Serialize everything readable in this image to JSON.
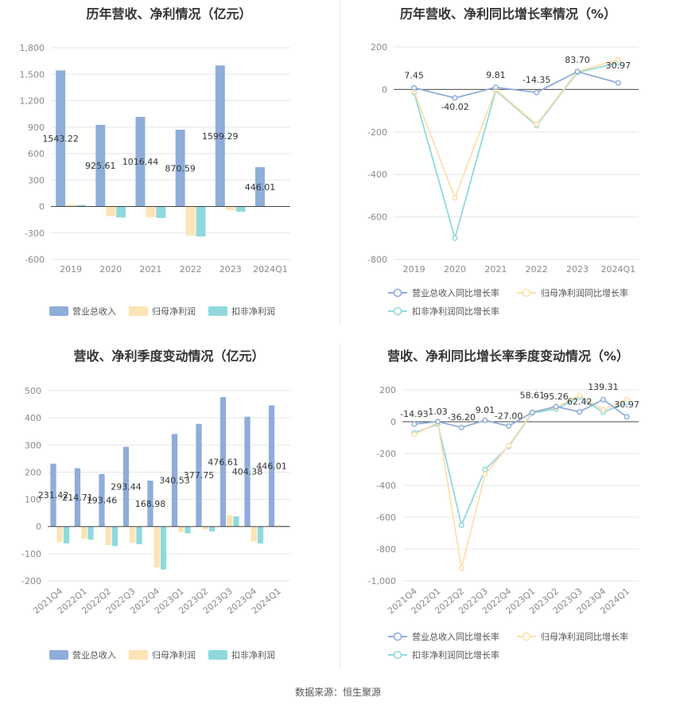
{
  "source": "数据来源：恒生聚源",
  "colors": {
    "revenue": "#8eadd9",
    "parent_profit": "#fde3b5",
    "deducted_profit": "#8fd9dc",
    "revenue_line": "#8eadd9",
    "parent_line": "#fddfab",
    "deducted_line": "#8fd9dc",
    "grid": "#e6e6e6",
    "axis": "#444444"
  },
  "legend_bar": [
    "营业总收入",
    "归母净利润",
    "扣非净利润"
  ],
  "legend_line": [
    "营业总收入同比增长率",
    "归母净利润同比增长率",
    "扣非净利润同比增长率"
  ],
  "chart_data": [
    {
      "id": "annual_revenue_profit",
      "type": "bar",
      "title": "历年营收、净利情况（亿元）",
      "categories": [
        "2019",
        "2020",
        "2021",
        "2022",
        "2023",
        "2024Q1"
      ],
      "ylim": [
        -600,
        1800
      ],
      "yticks": [
        -600,
        -300,
        0,
        300,
        600,
        900,
        1200,
        1500,
        1800
      ],
      "ytick_labels": [
        "-600",
        "-300",
        "0",
        "300",
        "600",
        "900",
        "1,200",
        "1,500",
        "1,800"
      ],
      "grid": true,
      "legend_position": "bottom",
      "series": [
        {
          "name": "营业总收入",
          "values": [
            1543.22,
            925.61,
            1016.44,
            870.59,
            1599.29,
            446.01
          ],
          "labels": [
            "1543.22",
            "925.61",
            "1016.44",
            "870.59",
            "1599.29",
            "446.01"
          ]
        },
        {
          "name": "归母净利润",
          "values": [
            22,
            -110,
            -120,
            -330,
            -40,
            5
          ]
        },
        {
          "name": "扣非净利润",
          "values": [
            18,
            -125,
            -130,
            -340,
            -60,
            3
          ]
        }
      ]
    },
    {
      "id": "annual_growth",
      "type": "line",
      "title": "历年营收、净利同比增长率情况（%）",
      "categories": [
        "2019",
        "2020",
        "2021",
        "2022",
        "2023",
        "2024Q1"
      ],
      "ylim": [
        -800,
        200
      ],
      "yticks": [
        -800,
        -600,
        -400,
        -200,
        0,
        200
      ],
      "ytick_labels": [
        "-800",
        "-600",
        "-400",
        "-200",
        "0",
        "200"
      ],
      "grid": true,
      "legend_position": "bottom",
      "series": [
        {
          "name": "营业总收入同比增长率",
          "values": [
            7.45,
            -40.02,
            9.81,
            -14.35,
            83.7,
            30.97
          ],
          "labels": [
            "7.45",
            "-40.02",
            "9.81",
            "-14.35",
            "83.70",
            "30.97"
          ]
        },
        {
          "name": "归母净利润同比增长率",
          "values": [
            -10,
            -510,
            0,
            -165,
            85,
            140
          ]
        },
        {
          "name": "扣非净利润同比增长率",
          "values": [
            -15,
            -700,
            -5,
            -170,
            80,
            125
          ]
        }
      ]
    },
    {
      "id": "quarterly_revenue_profit",
      "type": "bar",
      "title": "营收、净利季度变动情况（亿元）",
      "categories": [
        "2021Q4",
        "2022Q1",
        "2022Q2",
        "2022Q3",
        "2022Q4",
        "2023Q1",
        "2023Q2",
        "2023Q3",
        "2023Q4",
        "2024Q1"
      ],
      "ylim": [
        -200,
        500
      ],
      "yticks": [
        -200,
        -100,
        0,
        100,
        200,
        300,
        400,
        500
      ],
      "ytick_labels": [
        "-200",
        "-100",
        "0",
        "100",
        "200",
        "300",
        "400",
        "500"
      ],
      "grid": true,
      "legend_position": "bottom",
      "series": [
        {
          "name": "营业总收入",
          "values": [
            231.42,
            214.71,
            193.46,
            293.44,
            168.98,
            340.53,
            377.75,
            476.61,
            404.38,
            446.01
          ],
          "labels": [
            "231.42",
            "214.71",
            "193.46",
            "293.44",
            "168.98",
            "340.53",
            "377.75",
            "476.61",
            "404.38",
            "446.01"
          ]
        },
        {
          "name": "归母净利润",
          "values": [
            -58,
            -45,
            -68,
            -60,
            -150,
            -20,
            -10,
            42,
            -55,
            5
          ]
        },
        {
          "name": "扣非净利润",
          "values": [
            -62,
            -48,
            -72,
            -65,
            -158,
            -25,
            -18,
            38,
            -62,
            3
          ]
        }
      ]
    },
    {
      "id": "quarterly_growth",
      "type": "line",
      "title": "营收、净利同比增长率季度变动情况（%）",
      "categories": [
        "2021Q4",
        "2022Q1",
        "2022Q2",
        "2022Q3",
        "2022Q4",
        "2023Q1",
        "2023Q2",
        "2023Q3",
        "2023Q4",
        "2024Q1"
      ],
      "ylim": [
        -1000,
        200
      ],
      "yticks": [
        -1000,
        -800,
        -600,
        -400,
        -200,
        0,
        200
      ],
      "ytick_labels": [
        "-1,000",
        "-800",
        "-600",
        "-400",
        "-200",
        "0",
        "200"
      ],
      "grid": true,
      "legend_position": "bottom",
      "series": [
        {
          "name": "营业总收入同比增长率",
          "values": [
            -14.93,
            1.03,
            -36.2,
            9.01,
            -27.0,
            58.61,
            95.26,
            62.42,
            139.31,
            30.97
          ],
          "labels": [
            "-14.93",
            "1.03",
            "-36.20",
            "9.01",
            "-27.00",
            "58.61",
            "95.26",
            "62.42",
            "139.31",
            "30.97"
          ]
        },
        {
          "name": "归母净利润同比增长率",
          "values": [
            -80,
            -5,
            -920,
            -330,
            -150,
            60,
            90,
            165,
            75,
            140
          ]
        },
        {
          "name": "扣非净利润同比增长率",
          "values": [
            -70,
            -15,
            -650,
            -300,
            -155,
            55,
            80,
            155,
            60,
            120
          ]
        }
      ]
    }
  ]
}
